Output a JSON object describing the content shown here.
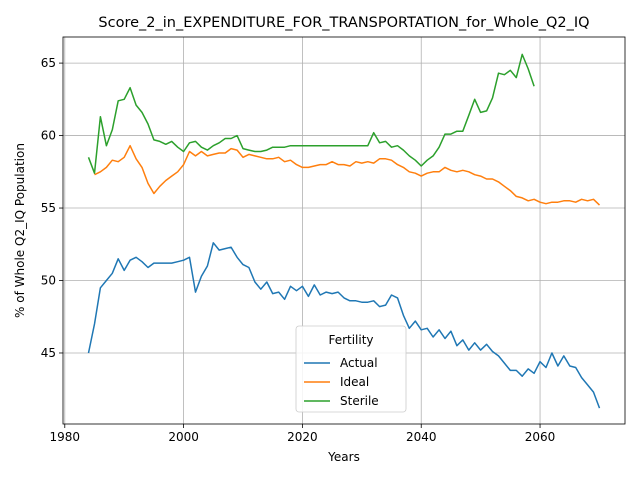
{
  "chart_data": {
    "type": "line",
    "title": "Score_2_in_EXPENDITURE_FOR_TRANSPORTATION_for_Whole_Q2_IQ",
    "xlabel": "Years",
    "ylabel": "% of Whole Q2_IQ Population",
    "xlim": [
      1979.7,
      2074.3
    ],
    "ylim": [
      40.1,
      66.8
    ],
    "xticks": [
      1980,
      2000,
      2020,
      2040,
      2060
    ],
    "yticks": [
      45,
      50,
      55,
      60,
      65
    ],
    "grid": true,
    "legend": {
      "title": "Fertility",
      "position": "lower center"
    },
    "series": [
      {
        "name": "Actual",
        "color": "#1f77b4",
        "x": [
          1984,
          1985,
          1986,
          1987,
          1988,
          1989,
          1990,
          1991,
          1992,
          1993,
          1994,
          1995,
          1996,
          1997,
          1998,
          1999,
          2000,
          2001,
          2002,
          2003,
          2004,
          2005,
          2006,
          2007,
          2008,
          2009,
          2010,
          2011,
          2012,
          2013,
          2014,
          2015,
          2016,
          2017,
          2018,
          2019,
          2020,
          2021,
          2022,
          2023,
          2024,
          2025,
          2026,
          2027,
          2028,
          2029,
          2030,
          2031,
          2032,
          2033,
          2034,
          2035,
          2036,
          2037,
          2038,
          2039,
          2040,
          2041,
          2042,
          2043,
          2044,
          2045,
          2046,
          2047,
          2048,
          2049,
          2050,
          2051,
          2052,
          2053,
          2054,
          2055,
          2056,
          2057,
          2058,
          2059,
          2060,
          2061,
          2062,
          2063,
          2064,
          2065,
          2066,
          2067,
          2068,
          2069,
          2070
        ],
        "values": [
          45.0,
          47.0,
          49.5,
          50.0,
          50.5,
          51.5,
          50.7,
          51.4,
          51.6,
          51.3,
          50.9,
          51.2,
          51.2,
          51.2,
          51.2,
          51.3,
          51.4,
          51.6,
          49.2,
          50.3,
          51.0,
          52.6,
          52.1,
          52.2,
          52.3,
          51.6,
          51.1,
          50.9,
          49.9,
          49.4,
          49.9,
          49.1,
          49.2,
          48.7,
          49.6,
          49.3,
          49.6,
          48.9,
          49.7,
          49.0,
          49.2,
          49.1,
          49.2,
          48.8,
          48.6,
          48.6,
          48.5,
          48.5,
          48.6,
          48.2,
          48.3,
          49.0,
          48.8,
          47.6,
          46.7,
          47.2,
          46.6,
          46.7,
          46.1,
          46.6,
          46.0,
          46.5,
          45.5,
          45.9,
          45.2,
          45.7,
          45.2,
          45.6,
          45.1,
          44.8,
          44.3,
          43.8,
          43.8,
          43.4,
          43.9,
          43.6,
          44.4,
          44.0,
          45.0,
          44.1,
          44.8,
          44.1,
          44.0,
          43.3,
          42.8,
          42.3,
          41.2
        ]
      },
      {
        "name": "Ideal",
        "color": "#ff7f0e",
        "x": [
          1985,
          1986,
          1987,
          1988,
          1989,
          1990,
          1991,
          1992,
          1993,
          1994,
          1995,
          1996,
          1997,
          1998,
          1999,
          2000,
          2001,
          2002,
          2003,
          2004,
          2005,
          2006,
          2007,
          2008,
          2009,
          2010,
          2011,
          2012,
          2013,
          2014,
          2015,
          2016,
          2017,
          2018,
          2019,
          2020,
          2021,
          2022,
          2023,
          2024,
          2025,
          2026,
          2027,
          2028,
          2029,
          2030,
          2031,
          2032,
          2033,
          2034,
          2035,
          2036,
          2037,
          2038,
          2039,
          2040,
          2041,
          2042,
          2043,
          2044,
          2045,
          2046,
          2047,
          2048,
          2049,
          2050,
          2051,
          2052,
          2053,
          2054,
          2055,
          2056,
          2057,
          2058,
          2059,
          2060,
          2061,
          2062,
          2063,
          2064,
          2065,
          2066,
          2067,
          2068,
          2069,
          2070
        ],
        "values": [
          57.3,
          57.5,
          57.8,
          58.3,
          58.2,
          58.5,
          59.3,
          58.4,
          57.8,
          56.7,
          56.0,
          56.5,
          56.9,
          57.2,
          57.5,
          58.0,
          58.9,
          58.6,
          58.9,
          58.6,
          58.7,
          58.8,
          58.8,
          59.1,
          59.0,
          58.5,
          58.7,
          58.6,
          58.5,
          58.4,
          58.4,
          58.5,
          58.2,
          58.3,
          58.0,
          57.8,
          57.8,
          57.9,
          58.0,
          58.0,
          58.2,
          58.0,
          58.0,
          57.9,
          58.2,
          58.1,
          58.2,
          58.1,
          58.4,
          58.4,
          58.3,
          58.0,
          57.8,
          57.5,
          57.4,
          57.2,
          57.4,
          57.5,
          57.5,
          57.8,
          57.6,
          57.5,
          57.6,
          57.5,
          57.3,
          57.2,
          57.0,
          57.0,
          56.8,
          56.5,
          56.2,
          55.8,
          55.7,
          55.5,
          55.6,
          55.4,
          55.3,
          55.4,
          55.4,
          55.5,
          55.5,
          55.4,
          55.6,
          55.5,
          55.6,
          55.2
        ]
      },
      {
        "name": "Sterile",
        "color": "#2ca02c",
        "x": [
          1984,
          1985,
          1986,
          1987,
          1988,
          1989,
          1990,
          1991,
          1992,
          1993,
          1994,
          1995,
          1996,
          1997,
          1998,
          1999,
          2000,
          2001,
          2002,
          2003,
          2004,
          2005,
          2006,
          2007,
          2008,
          2009,
          2010,
          2011,
          2012,
          2013,
          2014,
          2015,
          2016,
          2017,
          2018,
          2019,
          2020,
          2021,
          2022,
          2023,
          2024,
          2025,
          2026,
          2027,
          2028,
          2029,
          2030,
          2031,
          2032,
          2033,
          2034,
          2035,
          2036,
          2037,
          2038,
          2039,
          2040,
          2041,
          2042,
          2043,
          2044,
          2045,
          2046,
          2047,
          2048,
          2049,
          2050,
          2051,
          2052,
          2053,
          2054,
          2055,
          2056,
          2057,
          2058,
          2059
        ],
        "values": [
          58.5,
          57.4,
          61.3,
          59.3,
          60.4,
          62.4,
          62.5,
          63.3,
          62.1,
          61.6,
          60.8,
          59.7,
          59.6,
          59.4,
          59.6,
          59.2,
          58.9,
          59.5,
          59.6,
          59.2,
          59.0,
          59.3,
          59.5,
          59.8,
          59.8,
          60.0,
          59.1,
          59.0,
          58.9,
          58.9,
          59.0,
          59.2,
          59.2,
          59.2,
          59.3,
          59.3,
          59.3,
          59.3,
          59.3,
          59.3,
          59.3,
          59.3,
          59.3,
          59.3,
          59.3,
          59.3,
          59.3,
          59.3,
          60.2,
          59.5,
          59.6,
          59.2,
          59.3,
          59.0,
          58.6,
          58.3,
          57.9,
          58.3,
          58.6,
          59.2,
          60.1,
          60.1,
          60.3,
          60.3,
          61.4,
          62.5,
          61.6,
          61.7,
          62.6,
          64.3,
          64.2,
          64.5,
          64.0,
          65.6,
          64.6,
          63.4
        ]
      }
    ]
  }
}
